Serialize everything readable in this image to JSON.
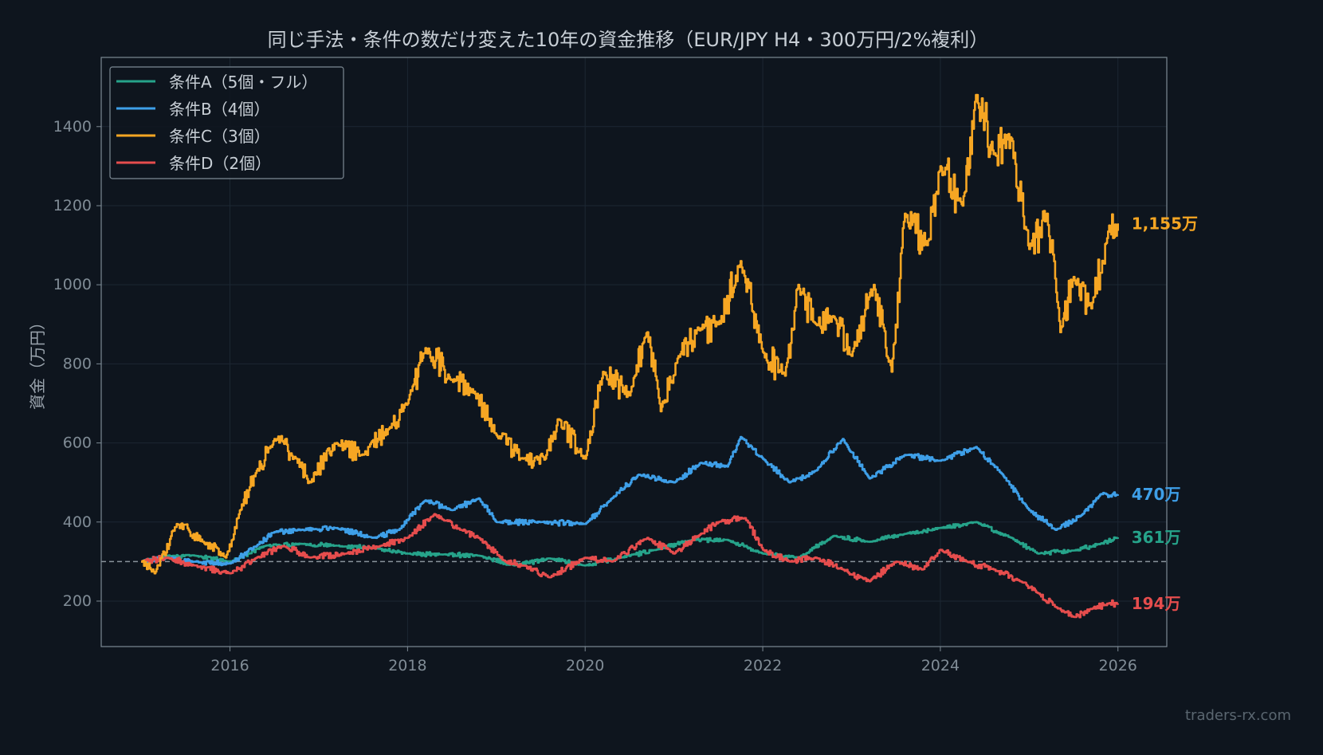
{
  "chart_data": {
    "type": "line",
    "title": "同じ手法・条件の数だけ変えた10年の資金推移（EUR/JPY H4・300万円/2%複利）",
    "xlabel": "",
    "ylabel": "資金（万円）",
    "xlim": [
      2014.55,
      2026.55
    ],
    "ylim": [
      85,
      1575
    ],
    "x_ticks": [
      2016,
      2018,
      2020,
      2022,
      2024,
      2026
    ],
    "x_tick_labels": [
      "2016",
      "2018",
      "2020",
      "2022",
      "2024",
      "2026"
    ],
    "y_ticks": [
      200,
      400,
      600,
      800,
      1000,
      1200,
      1400
    ],
    "y_tick_labels": [
      "200",
      "400",
      "600",
      "800",
      "1000",
      "1200",
      "1400"
    ],
    "grid": true,
    "legend_position": "top-left",
    "baseline": {
      "y": 300,
      "style": "dashed"
    },
    "watermark": "traders-rx.com",
    "colors": {
      "background": "#0e151e",
      "axis": "#7d8a94",
      "grid": "#1c2733",
      "tick_text": "#808c96",
      "title_text": "#c7ced5",
      "baseline": "#8a949c"
    },
    "series": [
      {
        "name": "条件A（5個・フル）",
        "color": "#26a38a",
        "end_label": "361万",
        "x": [
          2015.0,
          2015.3,
          2015.6,
          2016.0,
          2016.4,
          2016.8,
          2017.2,
          2017.6,
          2018.0,
          2018.4,
          2018.8,
          2019.2,
          2019.6,
          2020.0,
          2020.4,
          2020.8,
          2021.2,
          2021.6,
          2022.0,
          2022.4,
          2022.8,
          2023.2,
          2023.6,
          2024.0,
          2024.4,
          2024.8,
          2025.1,
          2025.5,
          2025.8,
          2026.0
        ],
        "y": [
          300,
          315,
          315,
          300,
          340,
          345,
          340,
          335,
          320,
          318,
          315,
          290,
          308,
          290,
          310,
          330,
          355,
          355,
          320,
          310,
          365,
          350,
          370,
          385,
          400,
          360,
          320,
          328,
          345,
          361
        ]
      },
      {
        "name": "条件B（4個）",
        "color": "#3e9fe8",
        "end_label": "470万",
        "x": [
          2015.0,
          2015.3,
          2015.6,
          2016.0,
          2016.3,
          2016.5,
          2016.8,
          2017.2,
          2017.6,
          2017.9,
          2018.2,
          2018.5,
          2018.8,
          2019.0,
          2019.5,
          2020.0,
          2020.3,
          2020.6,
          2021.0,
          2021.3,
          2021.6,
          2021.75,
          2022.0,
          2022.3,
          2022.6,
          2022.9,
          2023.2,
          2023.6,
          2024.0,
          2024.4,
          2024.7,
          2025.0,
          2025.3,
          2025.6,
          2025.8,
          2026.0
        ],
        "y": [
          300,
          310,
          300,
          295,
          340,
          375,
          380,
          385,
          360,
          380,
          455,
          430,
          460,
          400,
          400,
          395,
          460,
          520,
          500,
          550,
          540,
          615,
          560,
          500,
          530,
          610,
          510,
          570,
          555,
          590,
          520,
          430,
          380,
          420,
          470,
          470
        ]
      },
      {
        "name": "条件C（3個）",
        "color": "#f6a623",
        "end_label": "1,155万",
        "x": [
          2015.0,
          2015.15,
          2015.4,
          2015.7,
          2015.95,
          2016.1,
          2016.3,
          2016.5,
          2016.75,
          2016.9,
          2017.2,
          2017.5,
          2017.8,
          2018.0,
          2018.2,
          2018.5,
          2018.75,
          2019.0,
          2019.3,
          2019.55,
          2019.7,
          2020.0,
          2020.2,
          2020.5,
          2020.7,
          2020.85,
          2021.05,
          2021.3,
          2021.5,
          2021.75,
          2022.0,
          2022.25,
          2022.4,
          2022.6,
          2022.8,
          2023.0,
          2023.25,
          2023.45,
          2023.6,
          2023.85,
          2024.0,
          2024.25,
          2024.4,
          2024.6,
          2024.8,
          2025.0,
          2025.2,
          2025.35,
          2025.5,
          2025.7,
          2025.9,
          2026.0
        ],
        "y": [
          300,
          270,
          395,
          350,
          310,
          420,
          530,
          610,
          560,
          500,
          600,
          570,
          640,
          700,
          840,
          760,
          730,
          620,
          560,
          560,
          660,
          560,
          780,
          720,
          880,
          680,
          820,
          890,
          900,
          1060,
          830,
          770,
          1000,
          900,
          920,
          820,
          1000,
          780,
          1180,
          1100,
          1300,
          1200,
          1480,
          1330,
          1370,
          1090,
          1180,
          880,
          1020,
          940,
          1150,
          1155
        ]
      },
      {
        "name": "条件D（2個）",
        "color": "#e64d4d",
        "end_label": "194万",
        "x": [
          2015.0,
          2015.3,
          2015.6,
          2016.0,
          2016.3,
          2016.6,
          2016.9,
          2017.3,
          2017.7,
          2018.0,
          2018.3,
          2018.6,
          2018.8,
          2019.1,
          2019.3,
          2019.6,
          2020.0,
          2020.3,
          2020.7,
          2021.0,
          2021.3,
          2021.5,
          2021.8,
          2022.0,
          2022.3,
          2022.6,
          2022.9,
          2023.2,
          2023.5,
          2023.8,
          2024.0,
          2024.3,
          2024.6,
          2024.9,
          2025.1,
          2025.3,
          2025.5,
          2025.7,
          2025.9,
          2026.0
        ],
        "y": [
          300,
          310,
          290,
          270,
          310,
          340,
          310,
          320,
          340,
          360,
          420,
          380,
          360,
          300,
          290,
          260,
          310,
          300,
          360,
          320,
          370,
          400,
          410,
          330,
          300,
          310,
          280,
          250,
          300,
          280,
          330,
          300,
          280,
          250,
          220,
          185,
          160,
          180,
          195,
          194
        ]
      }
    ]
  }
}
